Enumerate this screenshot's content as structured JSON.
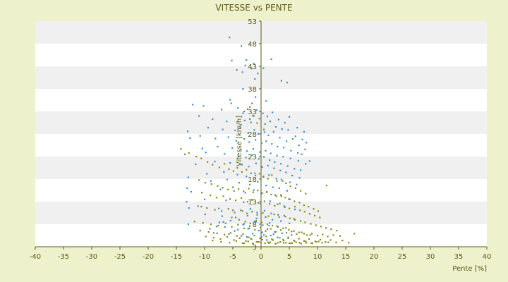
{
  "chart_data": {
    "type": "scatter",
    "title": "VITESSE vs PENTE",
    "xlabel": "Pente [%]",
    "ylabel": "Vitesse [km/h]",
    "xlim": [
      -40,
      40
    ],
    "ylim": [
      3,
      53
    ],
    "x_ticks": [
      -40,
      -35,
      -30,
      -25,
      -20,
      -15,
      -10,
      -5,
      0,
      5,
      10,
      15,
      20,
      25,
      30,
      35,
      40
    ],
    "y_ticks": [
      3,
      8,
      13,
      18,
      23,
      28,
      33,
      38,
      43,
      48,
      53
    ],
    "grid": true,
    "legend": "none",
    "colors": {
      "background": "#eef2cc",
      "plot_band_light": "#ffffff",
      "plot_band_dark": "#f0f0f0",
      "text": "#5a5a14",
      "axis": "#5a5a14"
    },
    "series": [
      {
        "color": "#3d8fd6",
        "x": [
          -5.6,
          -3.5,
          -2.6,
          -1.3,
          -5.2,
          -4.3,
          -3.3,
          -2.8,
          -1.7,
          -0.6,
          0.4,
          1.8,
          -1.1,
          3.6,
          4.6,
          -3.2,
          -5.5,
          -1.0,
          -1.6,
          0.9,
          -12.1,
          -10.2,
          -7.0,
          -5.3,
          -4.1,
          -3.2,
          -2.4,
          -1.5,
          -0.8,
          0.3,
          1.1,
          2.0,
          3.1,
          4.2,
          5.0,
          6.4,
          7.6,
          -11.0,
          -8.6,
          -6.1,
          -2.9,
          -1.8,
          -0.3,
          0.7,
          1.6,
          2.6,
          3.7,
          4.8,
          6.1,
          7.3,
          8.0,
          -13.0,
          -9.4,
          -6.8,
          -4.6,
          -3.7,
          -2.3,
          -1.2,
          -0.5,
          0.6,
          1.3,
          2.2,
          3.3,
          4.5,
          5.6,
          6.7,
          7.8,
          -12.6,
          -10.8,
          -8.1,
          -5.8,
          -4.4,
          -3.0,
          -2.1,
          -1.0,
          0.1,
          0.9,
          1.9,
          2.9,
          4.0,
          5.3,
          6.5,
          7.2,
          8.6,
          -10.4,
          -7.7,
          -5.1,
          -3.6,
          -2.5,
          -1.4,
          -0.2,
          0.8,
          1.7,
          2.8,
          3.9,
          5.2,
          6.6,
          7.9,
          -13.5,
          -9.8,
          -6.5,
          -4.0,
          -2.7,
          -1.6,
          -0.4,
          0.5,
          1.5,
          2.4,
          3.5,
          4.7,
          5.9,
          7.0,
          -11.6,
          -8.2,
          -5.5,
          -3.4,
          -2.2,
          -0.9,
          0.2,
          1.2,
          2.3,
          3.4,
          4.4,
          5.5,
          6.8,
          -12.9,
          -9.6,
          -6.6,
          -4.2,
          -2.6,
          -1.1,
          0.4,
          1.4,
          2.7,
          3.8,
          5.1,
          6.3,
          -8.9,
          -6.0,
          -3.9,
          -2.0,
          -0.6,
          0.9,
          2.1,
          3.2,
          4.6,
          -12.4,
          -7.2,
          -4.8,
          -2.8,
          -1.3,
          0.0,
          1.0,
          2.5,
          3.6,
          4.9,
          -13.2,
          -10.0,
          -6.2,
          -3.1,
          -1.7,
          -0.1,
          1.6,
          2.9,
          4.1,
          6.0,
          -12.8,
          -10.6,
          -7.5,
          -5.0,
          -3.3,
          -1.9,
          -0.7,
          0.6,
          1.8,
          3.0,
          4.3,
          5.8,
          -9.9,
          -6.9,
          -4.5,
          -2.4,
          -0.8,
          0.8,
          2.0,
          3.5,
          5.0,
          -7.4,
          -5.4,
          -3.0,
          -1.2,
          0.3,
          1.5,
          2.8,
          4.4,
          -9.1,
          -6.4,
          -4.1,
          -2.1,
          -0.4,
          1.1,
          2.4,
          3.7,
          5.4,
          -8.4,
          -5.7,
          -3.5,
          -1.5,
          0.1,
          1.7,
          3.3,
          -12.9,
          -6.7,
          -3.2,
          -0.9,
          1.4,
          -13.1,
          -7.9,
          -4.7,
          -2.3,
          0.2,
          2.2,
          4.8,
          -1.8,
          0.5,
          -2.5,
          1.0,
          -0.5
        ],
        "y": [
          49.4,
          47.5,
          44.4,
          43.6,
          44.3,
          42.2,
          41.7,
          43.2,
          42.5,
          41.4,
          42.6,
          44.6,
          40.2,
          39.8,
          39.4,
          38.0,
          35.6,
          36.2,
          34.8,
          35.3,
          34.5,
          34.2,
          33.4,
          34.8,
          33.8,
          32.6,
          33.5,
          32.1,
          33.3,
          32.6,
          31.9,
          32.8,
          31.2,
          30.5,
          31.8,
          29.4,
          28.5,
          32.0,
          31.3,
          30.8,
          31.0,
          30.6,
          31.4,
          30.2,
          30.8,
          29.6,
          29.1,
          28.9,
          27.5,
          26.8,
          26.1,
          28.6,
          29.4,
          29.0,
          28.8,
          29.5,
          28.2,
          28.9,
          28.0,
          28.4,
          27.7,
          28.5,
          27.2,
          26.4,
          26.9,
          25.5,
          24.6,
          27.1,
          27.6,
          27.0,
          27.3,
          26.5,
          26.9,
          26.2,
          26.7,
          26.0,
          26.4,
          25.8,
          25.2,
          25.0,
          24.3,
          23.8,
          23.5,
          22.0,
          24.8,
          25.2,
          24.9,
          24.5,
          24.2,
          24.7,
          24.0,
          24.3,
          23.7,
          23.2,
          23.0,
          22.6,
          22.1,
          21.4,
          23.5,
          23.9,
          23.6,
          23.0,
          22.8,
          23.3,
          22.5,
          22.9,
          22.2,
          21.8,
          21.4,
          20.9,
          20.3,
          20.0,
          21.3,
          21.9,
          21.6,
          21.2,
          20.8,
          21.5,
          20.7,
          21.0,
          20.4,
          19.9,
          19.5,
          18.8,
          18.3,
          18.4,
          19.2,
          19.6,
          19.0,
          18.6,
          19.3,
          18.5,
          18.9,
          18.1,
          17.6,
          17.3,
          16.8,
          17.6,
          17.9,
          17.2,
          16.8,
          17.4,
          16.6,
          16.2,
          16.0,
          15.4,
          15.2,
          15.7,
          15.4,
          15.0,
          15.6,
          14.8,
          15.1,
          14.5,
          14.2,
          13.6,
          13.0,
          13.5,
          13.3,
          12.9,
          13.4,
          12.6,
          13.1,
          12.4,
          12.0,
          11.3,
          11.6,
          11.9,
          11.5,
          11.1,
          10.9,
          11.4,
          10.6,
          11.0,
          10.4,
          10.1,
          9.7,
          9.2,
          10.2,
          9.8,
          9.5,
          9.9,
          9.3,
          9.6,
          9.0,
          8.7,
          8.2,
          8.4,
          8.8,
          8.1,
          8.6,
          7.8,
          8.3,
          7.6,
          7.2,
          7.0,
          7.4,
          6.8,
          7.1,
          6.6,
          6.9,
          6.3,
          6.0,
          5.6,
          6.1,
          5.8,
          5.4,
          5.9,
          5.2,
          5.5,
          5.0,
          8.0,
          8.5,
          7.9,
          8.6,
          7.7,
          16.0,
          7.5,
          6.5,
          7.0,
          6.2,
          5.8,
          5.1,
          4.8,
          5.6,
          5.2,
          4.5,
          4.1
        ]
      },
      {
        "color": "#8a8c14",
        "x": [
          -2.0,
          -1.3,
          -0.7,
          0.5,
          -3.0,
          -2.0,
          -14.2,
          -12.8,
          -11.5,
          -10.6,
          -9.5,
          -8.6,
          -7.4,
          -6.5,
          -5.7,
          -4.9,
          -4.2,
          -3.4,
          -2.6,
          -1.8,
          -1.0,
          -0.3,
          0.4,
          1.2,
          1.9,
          2.8,
          3.6,
          4.4,
          5.2,
          6.1,
          7.0,
          7.9,
          -11.0,
          -9.9,
          -8.8,
          -7.7,
          -6.8,
          -5.9,
          -5.0,
          -4.0,
          -3.1,
          -2.2,
          -1.4,
          -0.6,
          0.2,
          1.0,
          1.8,
          2.7,
          3.5,
          4.3,
          5.1,
          5.9,
          6.8,
          7.6,
          8.4,
          9.3,
          10.1,
          11.6,
          -10.5,
          -9.0,
          -7.9,
          -6.7,
          -5.5,
          -4.5,
          -3.5,
          -2.4,
          -1.5,
          -0.5,
          0.6,
          1.5,
          2.4,
          3.3,
          4.2,
          5.0,
          6.0,
          6.9,
          7.7,
          8.6,
          9.5,
          10.4,
          -11.2,
          -9.6,
          -8.2,
          -7.0,
          -5.8,
          -4.7,
          -3.6,
          -2.5,
          -1.6,
          -0.7,
          0.3,
          1.3,
          2.3,
          3.2,
          4.1,
          5.1,
          6.0,
          7.0,
          7.8,
          8.8,
          9.7,
          10.6,
          11.5,
          12.4,
          13.4,
          -11.8,
          -10.3,
          -8.9,
          -7.6,
          -6.3,
          -5.2,
          -4.1,
          -3.0,
          -2.0,
          -1.1,
          -0.1,
          0.8,
          1.7,
          2.6,
          3.5,
          4.5,
          5.4,
          6.3,
          7.2,
          8.1,
          9.0,
          10.0,
          10.9,
          11.8,
          12.8,
          14.0,
          16.5,
          -10.8,
          -9.3,
          -7.8,
          -6.5,
          -5.4,
          -4.3,
          -3.2,
          -2.2,
          -1.2,
          -0.2,
          0.9,
          1.9,
          2.9,
          3.9,
          4.8,
          5.8,
          6.7,
          7.6,
          8.5,
          9.6,
          10.5,
          11.4,
          12.3,
          13.3,
          14.4,
          15.5,
          -9.8,
          -8.4,
          -7.2,
          -6.0,
          -4.8,
          -3.8,
          -2.7,
          -1.7,
          -0.8,
          0.2,
          1.2,
          2.1,
          3.0,
          4.0,
          5.0,
          5.9,
          6.8,
          7.9,
          8.9,
          9.8,
          10.8,
          11.9,
          -8.6,
          -7.1,
          -5.6,
          -4.4,
          -3.3,
          -2.3,
          -1.4,
          -0.4,
          0.7,
          1.6,
          2.5,
          3.4,
          4.4,
          5.3,
          6.2,
          7.1,
          8.0,
          9.1,
          10.2,
          -5.2,
          -3.9,
          -2.8,
          -1.9,
          -0.9,
          0.1,
          1.1,
          2.0,
          3.0,
          3.9,
          4.9,
          5.8,
          6.7,
          7.6,
          8.7,
          -3.0,
          -1.5,
          0.0,
          1.4,
          2.6,
          4.0,
          5.5
        ],
        "y": [
          34.0,
          32.0,
          30.4,
          29.0,
          33.0,
          31.3,
          24.7,
          23.8,
          23.0,
          22.6,
          21.8,
          21.2,
          20.6,
          21.4,
          20.2,
          19.8,
          20.5,
          19.6,
          20.1,
          19.3,
          18.8,
          19.2,
          18.6,
          18.1,
          18.9,
          17.6,
          17.9,
          17.1,
          16.4,
          16.0,
          15.4,
          14.8,
          17.8,
          17.2,
          16.9,
          16.5,
          16.1,
          15.7,
          16.2,
          15.8,
          15.3,
          15.9,
          15.1,
          15.5,
          14.9,
          15.2,
          14.6,
          14.2,
          14.5,
          13.9,
          13.5,
          13.1,
          12.8,
          12.2,
          11.9,
          11.4,
          10.9,
          16.6,
          15.0,
          14.4,
          13.9,
          14.2,
          13.6,
          13.3,
          13.8,
          13.0,
          13.4,
          12.7,
          13.1,
          12.5,
          12.1,
          12.6,
          11.8,
          11.5,
          11.9,
          11.1,
          10.8,
          10.3,
          9.9,
          9.5,
          12.0,
          11.6,
          11.2,
          10.9,
          11.4,
          10.6,
          11.1,
          10.4,
          10.8,
          10.1,
          10.5,
          9.8,
          10.2,
          9.6,
          9.9,
          9.3,
          9.0,
          8.7,
          8.4,
          8.1,
          7.8,
          7.5,
          7.2,
          6.9,
          6.6,
          8.6,
          8.3,
          8.0,
          7.7,
          8.2,
          7.4,
          7.9,
          7.1,
          7.6,
          6.8,
          7.3,
          6.5,
          7.0,
          6.3,
          6.7,
          6.1,
          6.4,
          5.8,
          6.2,
          5.6,
          5.9,
          5.5,
          5.7,
          5.3,
          5.6,
          5.4,
          5.9,
          6.6,
          6.3,
          6.0,
          5.7,
          6.1,
          5.4,
          5.8,
          5.1,
          5.5,
          4.9,
          5.3,
          4.7,
          5.1,
          4.6,
          4.9,
          4.4,
          4.8,
          4.3,
          4.7,
          4.2,
          4.6,
          4.1,
          4.5,
          4.0,
          4.4,
          3.9,
          5.3,
          5.0,
          4.7,
          5.2,
          4.5,
          4.9,
          4.3,
          4.7,
          4.1,
          4.6,
          4.0,
          4.5,
          3.9,
          4.4,
          3.8,
          4.3,
          3.9,
          4.2,
          3.8,
          4.1,
          3.9,
          4.0,
          4.4,
          4.1,
          3.9,
          4.3,
          3.8,
          4.2,
          3.7,
          4.1,
          3.8,
          4.0,
          3.7,
          4.1,
          3.9,
          3.8,
          4.0,
          3.7,
          3.9,
          3.8,
          4.2,
          9.5,
          9.0,
          8.6,
          8.2,
          8.8,
          8.4,
          8.0,
          7.7,
          7.4,
          7.1,
          6.8,
          6.5,
          6.2,
          5.9,
          5.6,
          3.8,
          3.7,
          3.9,
          3.8,
          3.7,
          3.9,
          3.8
        ]
      }
    ]
  }
}
